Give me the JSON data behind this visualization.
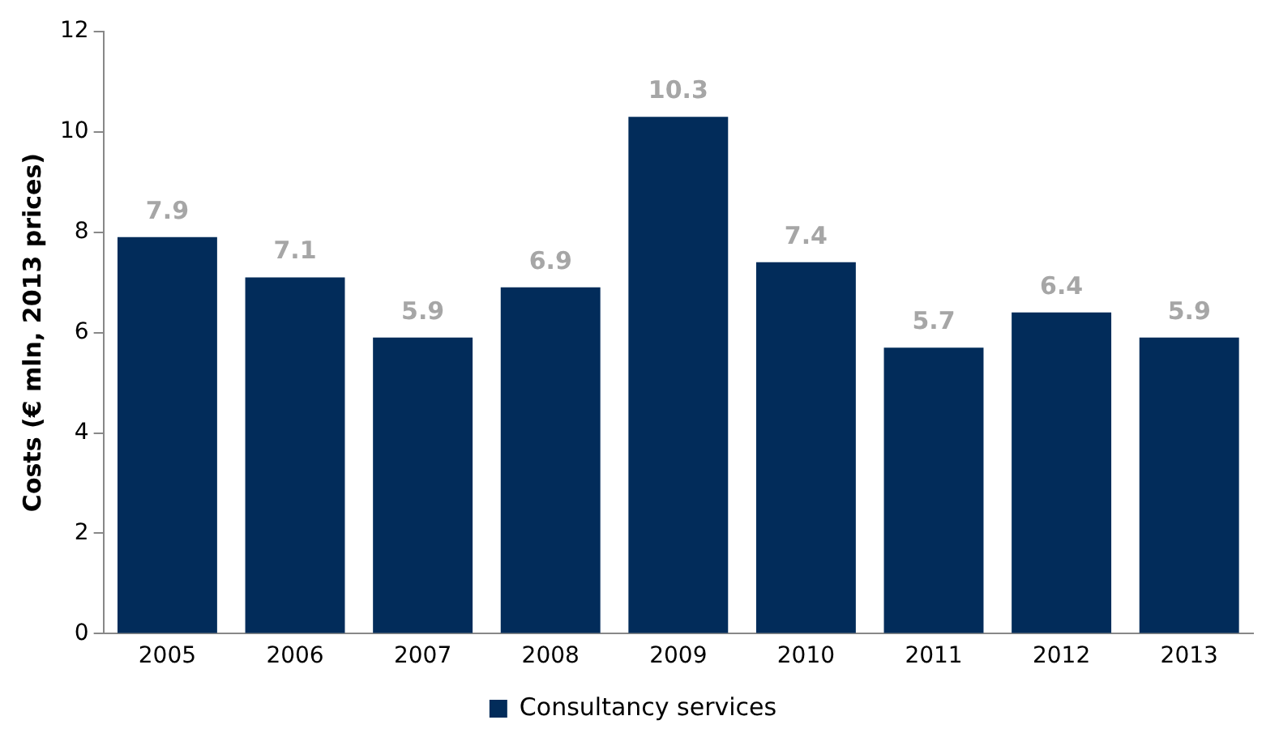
{
  "chart_data": {
    "type": "bar",
    "ylabel": "Costs (€ mln, 2013 prices)",
    "categories": [
      "2005",
      "2006",
      "2007",
      "2008",
      "2009",
      "2010",
      "2011",
      "2012",
      "2013"
    ],
    "series": [
      {
        "name": "Consultancy services",
        "color": "#022c5a",
        "values": [
          7.9,
          7.1,
          5.9,
          6.9,
          10.3,
          7.4,
          5.7,
          6.4,
          5.9
        ]
      }
    ],
    "ylim": [
      0,
      12
    ],
    "yticks": [
      0,
      2,
      4,
      6,
      8,
      10,
      12
    ],
    "grid": false,
    "legend": "bottom",
    "data_labels": true
  }
}
